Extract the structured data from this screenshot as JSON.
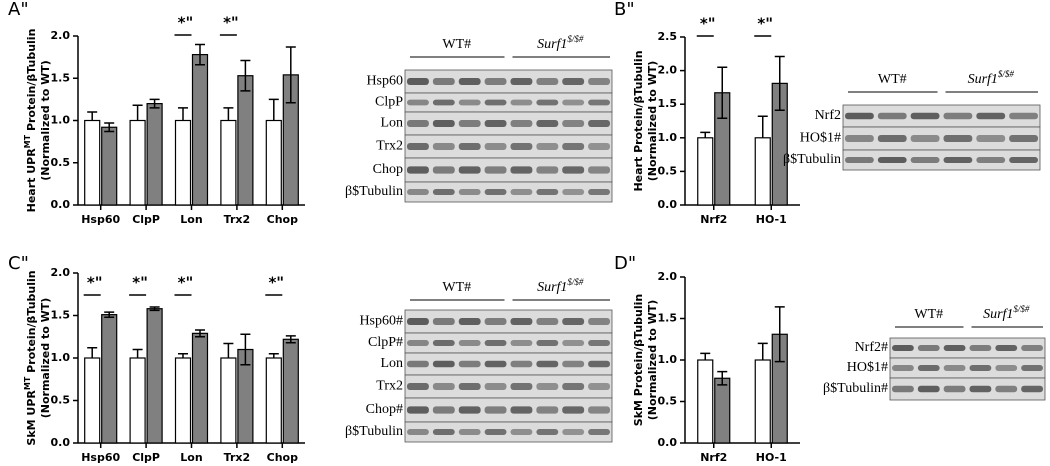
{
  "chart_data": [
    {
      "type": "bar",
      "panel": "A\"",
      "ylabel": [
        "Heart UPR",
        "MT",
        " Protein/βTubulin"
      ],
      "ylabel2": "(Normalized to WT)",
      "categories": [
        "Hsp60",
        "ClpP",
        "Lon",
        "Trx2",
        "Chop"
      ],
      "series": [
        {
          "color": "#ffffff",
          "values": [
            1.0,
            1.0,
            1.0,
            1.0,
            1.0
          ],
          "errors": [
            0.1,
            0.18,
            0.15,
            0.15,
            0.25
          ]
        },
        {
          "color": "#808080",
          "values": [
            0.92,
            1.2,
            1.78,
            1.53,
            1.54
          ],
          "errors": [
            0.05,
            0.05,
            0.12,
            0.18,
            0.33
          ]
        }
      ],
      "significance": [
        null,
        null,
        "*\"",
        "*\"",
        null
      ],
      "ylim": [
        0,
        2
      ],
      "yticks": [
        {
          "value": 0,
          "label": "0.0"
        },
        0.5,
        {
          "value": 1,
          "label": "1.0"
        },
        1.5,
        {
          "value": 2,
          "label": "2.0"
        }
      ]
    },
    {
      "type": "bar",
      "panel": "B\"",
      "ylabel": [
        "Heart Protein/βTubulin"
      ],
      "ylabel2": "(Normalized to WT)",
      "categories": [
        "Nrf2",
        "HO-1"
      ],
      "series": [
        {
          "color": "#ffffff",
          "values": [
            1.0,
            1.0
          ],
          "errors": [
            0.08,
            0.32
          ]
        },
        {
          "color": "#808080",
          "values": [
            1.67,
            1.81
          ],
          "errors": [
            0.38,
            0.4
          ]
        }
      ],
      "significance": [
        "*\"",
        "*\""
      ],
      "ylim": [
        0,
        2.5
      ],
      "yticks": [
        {
          "value": 0,
          "label": "0.0"
        },
        0.5,
        {
          "value": 1,
          "label": "1.0"
        },
        1.5,
        {
          "value": 2,
          "label": "2.0"
        },
        2.5
      ]
    },
    {
      "type": "bar",
      "panel": "C\"",
      "ylabel": [
        "SkM UPR",
        "MT",
        " Protein/βTubulin"
      ],
      "ylabel2": "(Normalized to WT)",
      "categories": [
        "Hsp60",
        "ClpP",
        "Lon",
        "Trx2",
        "Chop"
      ],
      "series": [
        {
          "color": "#ffffff",
          "values": [
            1.0,
            1.0,
            1.0,
            1.0,
            1.0
          ],
          "errors": [
            0.12,
            0.1,
            0.05,
            0.17,
            0.05
          ]
        },
        {
          "color": "#808080",
          "values": [
            1.51,
            1.58,
            1.29,
            1.1,
            1.22
          ],
          "errors": [
            0.03,
            0.02,
            0.04,
            0.18,
            0.04
          ]
        }
      ],
      "significance": [
        "*\"",
        "*\"",
        "*\"",
        null,
        "*\""
      ],
      "ylim": [
        0,
        2
      ],
      "yticks": [
        {
          "value": 0,
          "label": "0.0"
        },
        0.5,
        {
          "value": 1,
          "label": "1.0"
        },
        1.5,
        {
          "value": 2,
          "label": "2.0"
        }
      ]
    },
    {
      "type": "bar",
      "panel": "D\"",
      "ylabel": [
        "SkM Protein/βTubulin"
      ],
      "ylabel2": "(Normalized to WT)",
      "categories": [
        "Nrf2",
        "HO-1"
      ],
      "series": [
        {
          "color": "#ffffff",
          "values": [
            1.0,
            1.0
          ],
          "errors": [
            0.08,
            0.2
          ]
        },
        {
          "color": "#808080",
          "values": [
            0.78,
            1.31
          ],
          "errors": [
            0.08,
            0.33
          ]
        }
      ],
      "significance": [
        null,
        null
      ],
      "ylim": [
        0,
        2
      ],
      "yticks": [
        {
          "value": 0,
          "label": "0.0"
        },
        0.5,
        {
          "value": 1,
          "label": "1.0"
        },
        1.5,
        {
          "value": 2,
          "label": "2.0"
        }
      ]
    }
  ],
  "blots": [
    {
      "wt": "WT#",
      "mutant": [
        "Surf1",
        "$/$#"
      ],
      "rows": [
        "Hsp60",
        "ClpP",
        "Lon",
        "Trx2",
        "Chop",
        "β$Tubulin"
      ]
    },
    {
      "wt": "WT#",
      "mutant": [
        "Surf1",
        "$/$#"
      ],
      "rows": [
        "Nrf2",
        "HO$1#",
        "β$Tubulin"
      ]
    },
    {
      "wt": "WT#",
      "mutant": [
        "Surf1",
        "$/$#"
      ],
      "rows": [
        "Hsp60#",
        "ClpP#",
        "Lon",
        "Trx2",
        "Chop#",
        "β$Tubulin"
      ]
    },
    {
      "wt": "WT#",
      "mutant": [
        "Surf1",
        "$/$#"
      ],
      "rows": [
        "Nrf2#",
        "HO$1#",
        "β$Tubulin#"
      ]
    }
  ]
}
